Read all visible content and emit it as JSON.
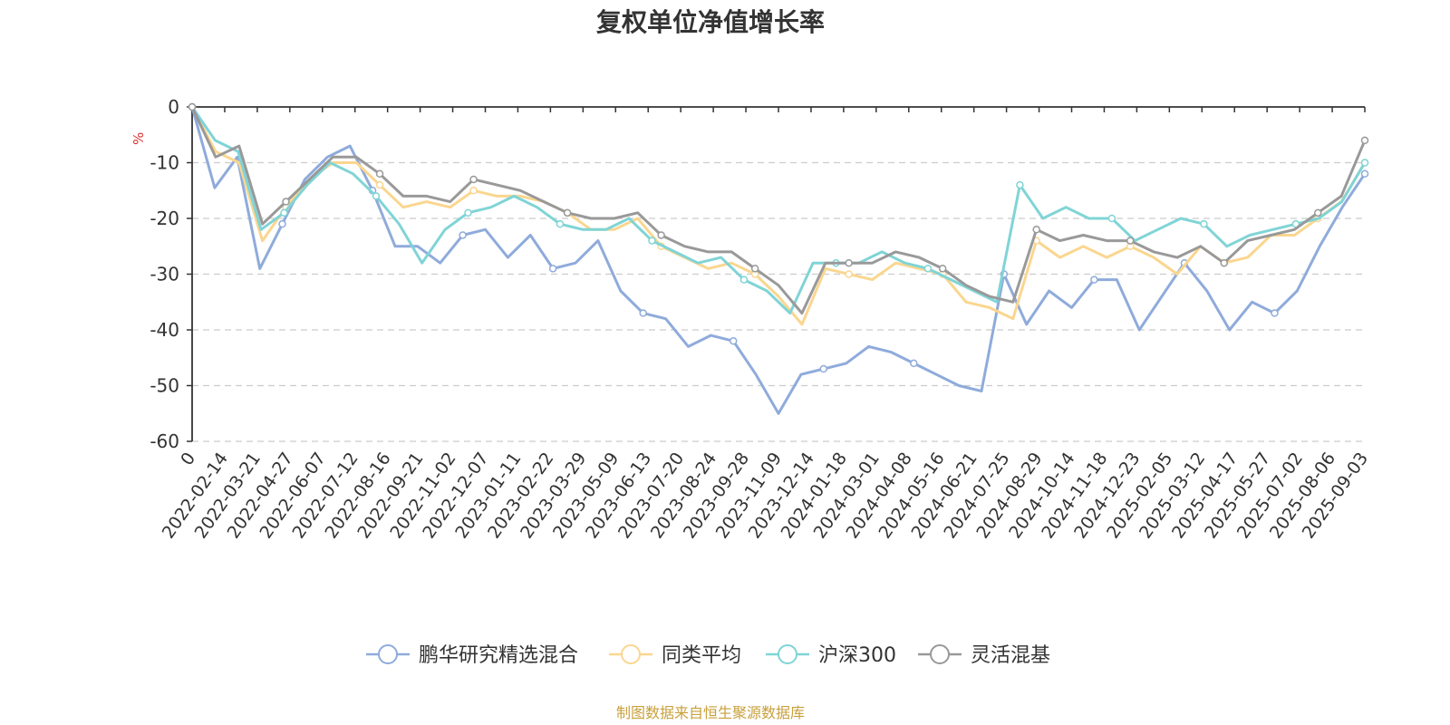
{
  "chart_data": {
    "type": "line",
    "title": "复权单位净值增长率",
    "ylabel": "%",
    "ylim": [
      -60,
      0
    ],
    "yticks": [
      0,
      -10,
      -20,
      -30,
      -40,
      -50,
      -60
    ],
    "grid": true,
    "legend_position": "bottom",
    "x_ticks": [
      "0",
      "2022-02-14",
      "2022-03-21",
      "2022-04-27",
      "2022-06-07",
      "2022-07-12",
      "2022-08-16",
      "2022-09-21",
      "2022-11-02",
      "2022-12-07",
      "2023-01-11",
      "2023-02-22",
      "2023-03-29",
      "2023-05-09",
      "2023-06-13",
      "2023-07-20",
      "2023-08-24",
      "2023-09-28",
      "2023-11-09",
      "2023-12-14",
      "2024-01-18",
      "2024-03-01",
      "2024-04-08",
      "2024-05-16",
      "2024-06-21",
      "2024-07-25",
      "2024-08-29",
      "2024-10-14",
      "2024-11-18",
      "2024-12-23",
      "2025-02-05",
      "2025-03-12",
      "2025-04-17",
      "2025-05-27",
      "2025-07-02",
      "2025-08-06",
      "2025-09-03"
    ],
    "series": [
      {
        "name": "鹏华研究精选混合",
        "color": "#8fabdb",
        "values": [
          0,
          -14.5,
          -9,
          -29,
          -21,
          -13,
          -9,
          -7,
          -15,
          -25,
          -25,
          -28,
          -23,
          -22,
          -27,
          -23,
          -29,
          -28,
          -24,
          -33,
          -37,
          -38,
          -43,
          -41,
          -42,
          -48,
          -55,
          -48,
          -47,
          -46,
          -43,
          -44,
          -46,
          -48,
          -50,
          -51,
          -30,
          -39,
          -33,
          -36,
          -31,
          -31,
          -40,
          -34,
          -28,
          -33,
          -40,
          -35,
          -37,
          -33,
          -25,
          -18,
          -12
        ]
      },
      {
        "name": "同类平均",
        "color": "#fad68f",
        "values": [
          0,
          -8,
          -10,
          -24,
          -18,
          -13,
          -10,
          -10,
          -14,
          -18,
          -17,
          -18,
          -15,
          -16,
          -16,
          -17,
          -19,
          -22,
          -22,
          -20,
          -25,
          -27,
          -29,
          -28,
          -30,
          -34,
          -39,
          -29,
          -30,
          -31,
          -28,
          -29,
          -30,
          -35,
          -36,
          -38,
          -24,
          -27,
          -25,
          -27,
          -25,
          -27,
          -30,
          -25,
          -28,
          -27,
          -23,
          -23,
          -20,
          -17,
          -10
        ]
      },
      {
        "name": "沪深300",
        "color": "#80d4d6",
        "values": [
          0,
          -6,
          -8,
          -22,
          -19,
          -14,
          -10,
          -12,
          -16,
          -21,
          -28,
          -22,
          -19,
          -18,
          -16,
          -18,
          -21,
          -22,
          -22,
          -20,
          -24,
          -26,
          -28,
          -27,
          -31,
          -33,
          -37,
          -28,
          -28,
          -28,
          -26,
          -28,
          -29,
          -31,
          -33,
          -35,
          -14,
          -20,
          -18,
          -20,
          -20,
          -24,
          -22,
          -20,
          -21,
          -25,
          -23,
          -22,
          -21,
          -20,
          -17,
          -10
        ]
      },
      {
        "name": "灵活混基",
        "color": "#999999",
        "values": [
          0,
          -9,
          -7,
          -21,
          -17,
          -13,
          -9,
          -9,
          -12,
          -16,
          -16,
          -17,
          -13,
          -14,
          -15,
          -17,
          -19,
          -20,
          -20,
          -19,
          -23,
          -25,
          -26,
          -26,
          -29,
          -32,
          -37,
          -28,
          -28,
          -28,
          -26,
          -27,
          -29,
          -32,
          -34,
          -35,
          -22,
          -24,
          -23,
          -24,
          -24,
          -26,
          -27,
          -25,
          -28,
          -24,
          -23,
          -22,
          -19,
          -16,
          -6
        ]
      }
    ]
  },
  "source_text": "制图数据来自恒生聚源数据库",
  "colors": {
    "axis": "#333333",
    "grid": "#cccccc",
    "unit": "#e03030",
    "source": "#c8a03c"
  }
}
